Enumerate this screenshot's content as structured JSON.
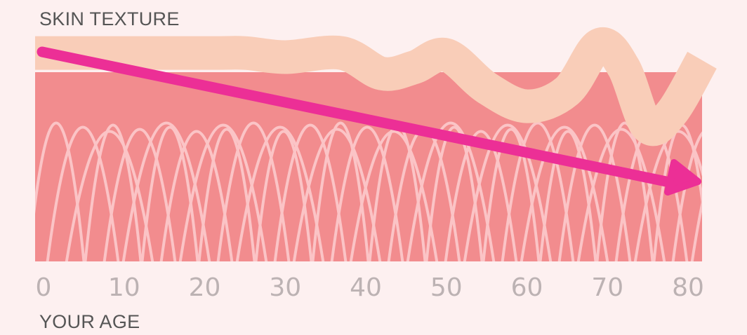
{
  "chart_data": {
    "type": "area",
    "title": "SKIN TEXTURE",
    "xlabel": "YOUR AGE",
    "ylabel": "",
    "xlim": [
      0,
      80
    ],
    "x_ticks": [
      "0",
      "10",
      "20",
      "30",
      "40",
      "50",
      "60",
      "70",
      "80"
    ],
    "grid": false,
    "legend": "none",
    "series": [
      {
        "x": [
          0,
          20,
          25,
          30,
          37,
          42,
          46,
          50,
          55,
          60,
          65,
          69,
          72,
          75,
          78,
          80
        ],
        "values": [
          0.92,
          0.92,
          0.92,
          0.88,
          0.92,
          0.72,
          0.78,
          0.9,
          0.58,
          0.4,
          0.55,
          1.0,
          0.78,
          0.2,
          0.34,
          0.85
        ]
      }
    ],
    "trend": {
      "x": [
        0,
        80
      ],
      "values": [
        1.0,
        0.15
      ]
    },
    "colors": {
      "background": "#fdf0f0",
      "dermis": "#f28c8e",
      "fibers": "#fbc4c6",
      "surface": "#f9cdb8",
      "arrow": "#ec2f96",
      "ticks": "#bcb2b3",
      "labels": "#555555"
    }
  }
}
